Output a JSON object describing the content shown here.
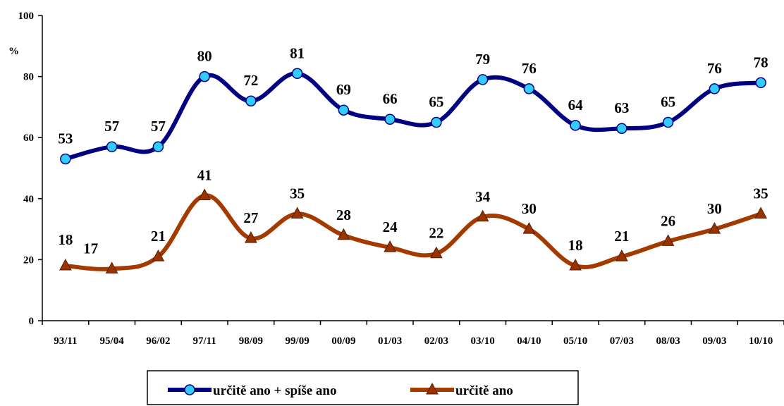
{
  "chart_data": {
    "type": "line",
    "title": "",
    "xlabel": "",
    "ylabel": "%",
    "ylim": [
      0,
      100
    ],
    "yticks": [
      0,
      20,
      40,
      60,
      80,
      100
    ],
    "grid": false,
    "legend_position": "bottom",
    "categories": [
      "93/11",
      "95/04",
      "96/02",
      "97/11",
      "98/09",
      "99/09",
      "00/09",
      "01/03",
      "02/03",
      "03/10",
      "04/10",
      "05/10",
      "07/03",
      "08/03",
      "09/03",
      "10/10"
    ],
    "series": [
      {
        "name": "určitě ano + spíše ano",
        "color": "#000080",
        "marker": "circle",
        "marker_color": "#33ccff",
        "values": [
          53,
          57,
          57,
          80,
          72,
          81,
          69,
          66,
          65,
          79,
          76,
          64,
          63,
          65,
          76,
          78
        ]
      },
      {
        "name": "určitě ano",
        "color": "#a33a00",
        "marker": "triangle",
        "marker_color": "#993300",
        "values": [
          18,
          17,
          21,
          41,
          27,
          35,
          28,
          24,
          22,
          34,
          30,
          18,
          21,
          26,
          30,
          35
        ]
      }
    ]
  }
}
